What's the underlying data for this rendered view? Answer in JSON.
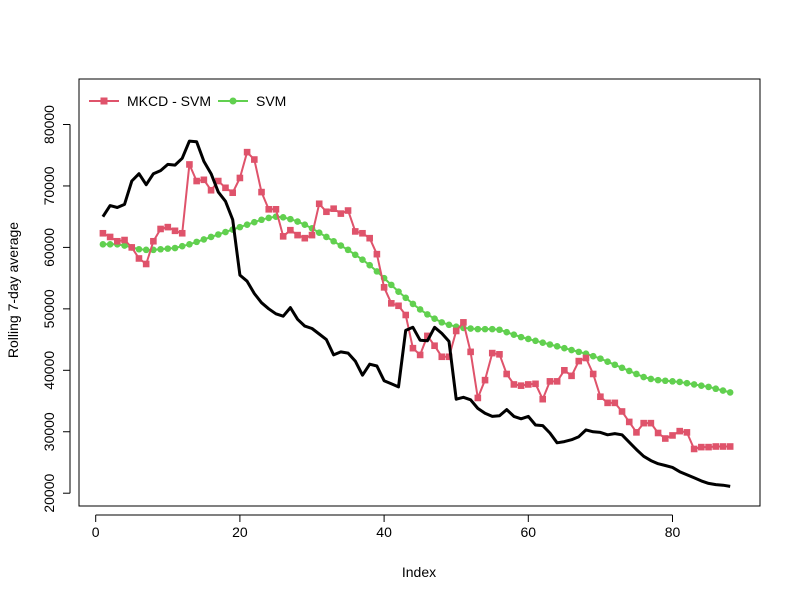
{
  "chart_data": {
    "type": "line",
    "title": "",
    "xlabel": "Index",
    "ylabel": "Rolling 7-day average",
    "xlim": [
      1,
      88
    ],
    "ylim": [
      20000,
      87000
    ],
    "x_ticks": [
      0,
      20,
      40,
      60,
      80
    ],
    "x_tick_labels": [
      "0",
      "20",
      "40",
      "60",
      "80"
    ],
    "y_ticks": [
      20000,
      30000,
      40000,
      50000,
      60000,
      70000,
      80000
    ],
    "y_tick_labels": [
      "20000",
      "30000",
      "40000",
      "50000",
      "60000",
      "70000",
      "80000"
    ],
    "grid": false,
    "legend_position": "top-left",
    "legend": [
      {
        "label": "MKCD - SVM",
        "color": "#DF536B",
        "marker": "square"
      },
      {
        "label": "SVM",
        "color": "#61D04F",
        "marker": "circle"
      }
    ],
    "series": [
      {
        "color": "#000000",
        "marker": "none",
        "values": [
          65000,
          66800,
          66500,
          67000,
          70800,
          72000,
          70200,
          72000,
          72500,
          73500,
          73400,
          74500,
          77300,
          77200,
          74000,
          72000,
          69000,
          67500,
          64500,
          55500,
          54500,
          52500,
          51000,
          50000,
          49200,
          48800,
          50200,
          48300,
          47200,
          46800,
          45900,
          45000,
          42500,
          43000,
          42800,
          41500,
          39200,
          41000,
          40700,
          38300,
          37800,
          37300,
          46500,
          47000,
          44900,
          44800,
          47000,
          46000,
          44700,
          35300,
          35600,
          35200,
          33800,
          33000,
          32500,
          32600,
          33600,
          32500,
          32100,
          32500,
          31100,
          31000,
          29800,
          28200,
          28400,
          28700,
          29200,
          30300,
          30000,
          29900,
          29500,
          29700,
          29500,
          28300,
          27100,
          26000,
          25300,
          24800,
          24500,
          24200,
          23500,
          23000,
          22500,
          22000,
          21600,
          21400,
          21300,
          21100
        ]
      },
      {
        "name": "MKCD - SVM",
        "color": "#DF536B",
        "marker": "square",
        "values": [
          62300,
          61700,
          61000,
          61200,
          60000,
          58200,
          57300,
          61000,
          63000,
          63300,
          62700,
          62300,
          73500,
          70800,
          71000,
          69300,
          70800,
          69700,
          68900,
          71300,
          75500,
          74300,
          69000,
          66200,
          66200,
          61800,
          62800,
          62000,
          61500,
          62000,
          67100,
          65800,
          66300,
          65500,
          66000,
          62600,
          62300,
          61500,
          58900,
          53500,
          50900,
          50500,
          49000,
          43600,
          42500,
          45600,
          44000,
          42200,
          42200,
          46400,
          47800,
          43000,
          35500,
          38400,
          42800,
          42600,
          39400,
          37700,
          37500,
          37700,
          37800,
          35300,
          38200,
          38200,
          40000,
          39100,
          41500,
          42000,
          39400,
          35700,
          34700,
          34700,
          33300,
          31600,
          29900,
          31400,
          31400,
          29800,
          28900,
          29400,
          30100,
          29900,
          27200,
          27500,
          27500,
          27600,
          27600,
          27600
        ]
      },
      {
        "name": "SVM",
        "color": "#61D04F",
        "marker": "circle",
        "values": [
          60500,
          60500,
          60500,
          60300,
          60000,
          59700,
          59600,
          59600,
          59700,
          59800,
          59900,
          60200,
          60500,
          60900,
          61300,
          61700,
          62100,
          62500,
          62900,
          63300,
          63700,
          64100,
          64500,
          64800,
          65000,
          64900,
          64600,
          64200,
          63700,
          63100,
          62400,
          61700,
          61000,
          60300,
          59600,
          58800,
          58000,
          57100,
          56100,
          55000,
          53900,
          52800,
          51800,
          50800,
          49900,
          49100,
          48400,
          47800,
          47400,
          47100,
          46900,
          46800,
          46700,
          46700,
          46700,
          46600,
          46200,
          45800,
          45400,
          45100,
          44800,
          44500,
          44200,
          43900,
          43600,
          43300,
          43000,
          42700,
          42300,
          41900,
          41400,
          40900,
          40400,
          39900,
          39400,
          38900,
          38600,
          38400,
          38300,
          38200,
          38100,
          37900,
          37700,
          37500,
          37300,
          37000,
          36700,
          36400
        ]
      }
    ]
  }
}
